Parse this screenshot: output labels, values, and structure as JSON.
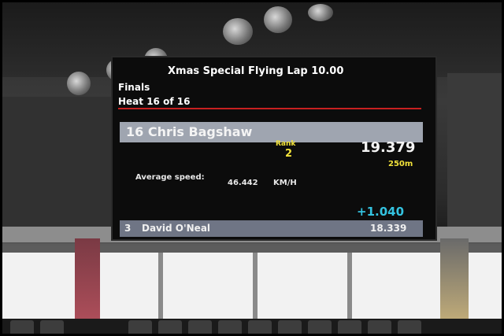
{
  "scoreboard": {
    "event_title": "Xmas Special Flying Lap 10.00",
    "stage": "Finals",
    "heat": "Heat 16 of 16",
    "current_rider": "16 Chris Bagshaw",
    "rank_label": "Rank",
    "rank_value": "2",
    "lap_time": "19.379",
    "distance": "250m",
    "average_speed_label": "Average speed:",
    "average_speed_value": "46.442",
    "average_speed_unit": "KM/H",
    "gap": "+1.040",
    "leader_rank": "3",
    "leader_name": "David O'Neal",
    "leader_time": "18.339"
  },
  "colors": {
    "board_background": "#0c0c0c",
    "heat_divider": "#c82020",
    "rider_bar": "#9fa5b0",
    "rank_text": "#f2e23a",
    "gap_text": "#34c3e0",
    "leader_bar": "#6f7585"
  }
}
